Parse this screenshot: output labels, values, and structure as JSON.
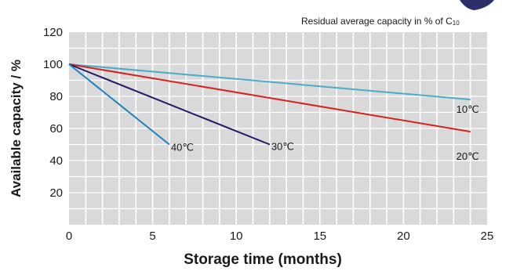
{
  "chart_data": {
    "type": "line",
    "subtitle": "Residual average capacity in % of C",
    "subtitle_subscript": "10",
    "xlabel": "Storage time (months)",
    "ylabel": "Available capacity / %",
    "xlim": [
      0,
      25
    ],
    "ylim": [
      0,
      120
    ],
    "x_ticks": [
      0,
      5,
      10,
      15,
      20,
      25
    ],
    "y_ticks": [
      20,
      40,
      60,
      80,
      100,
      120
    ],
    "x_tick_labels": [
      "0",
      "5",
      "10",
      "15",
      "20",
      "25"
    ],
    "y_tick_labels": [
      "20",
      "40",
      "60",
      "80",
      "100",
      "120"
    ],
    "grid": true,
    "colors": {
      "plot_background": "#d9d9d9",
      "grid": "#ffffff"
    },
    "series": [
      {
        "name": "10℃",
        "color": "#4bacc6",
        "x": [
          0,
          24
        ],
        "y": [
          100,
          78
        ]
      },
      {
        "name": "20℃",
        "color": "#d7231f",
        "x": [
          0,
          24
        ],
        "y": [
          100,
          58
        ]
      },
      {
        "name": "30℃",
        "color": "#231a6b",
        "x": [
          0,
          12
        ],
        "y": [
          100,
          50
        ]
      },
      {
        "name": "40℃",
        "color": "#1f82c0",
        "x": [
          0,
          6
        ],
        "y": [
          100,
          50
        ]
      }
    ]
  }
}
